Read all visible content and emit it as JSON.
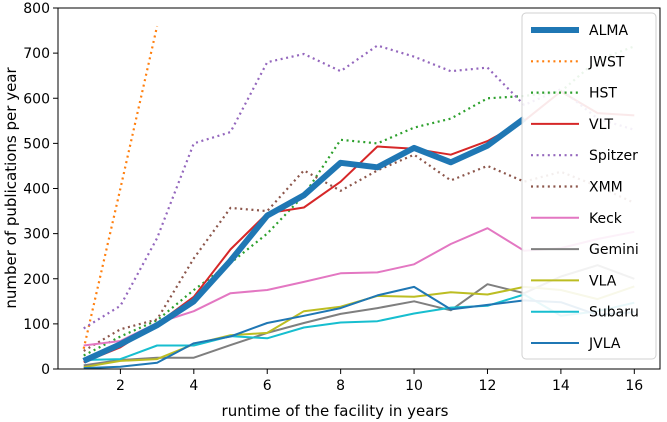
{
  "chart_data": {
    "type": "line",
    "title": "",
    "xlabel": "runtime of the facility in years",
    "ylabel": "number of publications per year",
    "xlim": [
      0.3,
      16.7
    ],
    "ylim": [
      0,
      800
    ],
    "xticks": [
      2,
      4,
      6,
      8,
      10,
      12,
      14,
      16
    ],
    "yticks": [
      0,
      100,
      200,
      300,
      400,
      500,
      600,
      700,
      800
    ],
    "grid": false,
    "legend_position": "right",
    "series": [
      {
        "name": "ALMA",
        "color": "#1f77b4",
        "dash": "solid",
        "width": "thick",
        "x": [
          1,
          2,
          3,
          4,
          5,
          6,
          7,
          8,
          9,
          10,
          11,
          12,
          13
        ],
        "y": [
          18,
          55,
          97,
          150,
          240,
          340,
          385,
          457,
          447,
          490,
          458,
          495,
          555
        ]
      },
      {
        "name": "JWST",
        "color": "#ff7f0e",
        "dash": "dotted",
        "width": "normal",
        "x": [
          1,
          2,
          3
        ],
        "y": [
          45,
          400,
          760
        ]
      },
      {
        "name": "HST",
        "color": "#2ca02c",
        "dash": "dotted",
        "width": "normal",
        "x": [
          1,
          2,
          3,
          4,
          5,
          6,
          7,
          8,
          9,
          10,
          11,
          12,
          13,
          14,
          15,
          16
        ],
        "y": [
          30,
          72,
          108,
          175,
          235,
          300,
          385,
          508,
          500,
          535,
          555,
          600,
          605,
          615,
          685,
          715
        ]
      },
      {
        "name": "VLT",
        "color": "#d62728",
        "dash": "solid",
        "width": "normal",
        "x": [
          1,
          2,
          3,
          4,
          5,
          6,
          7,
          8,
          9,
          10,
          11,
          12,
          13,
          14,
          15,
          16
        ],
        "y": [
          15,
          48,
          100,
          160,
          265,
          345,
          358,
          415,
          493,
          488,
          475,
          505,
          550,
          615,
          567,
          562
        ]
      },
      {
        "name": "Spitzer",
        "color": "#9467bd",
        "dash": "dotted",
        "width": "normal",
        "x": [
          1,
          2,
          3,
          4,
          5,
          6,
          7,
          8,
          9,
          10,
          11,
          12,
          13,
          14,
          15,
          16
        ],
        "y": [
          90,
          140,
          290,
          500,
          525,
          680,
          698,
          660,
          717,
          692,
          660,
          668,
          585,
          620,
          555,
          530
        ]
      },
      {
        "name": "XMM",
        "color": "#8c564b",
        "dash": "dotted",
        "width": "normal",
        "x": [
          1,
          2,
          3,
          4,
          5,
          6,
          7,
          8,
          9,
          10,
          11,
          12,
          13,
          14,
          15,
          16
        ],
        "y": [
          40,
          88,
          110,
          245,
          357,
          350,
          440,
          395,
          440,
          475,
          418,
          450,
          415,
          437,
          405,
          368
        ]
      },
      {
        "name": "Keck",
        "color": "#e377c2",
        "dash": "solid",
        "width": "normal",
        "x": [
          1,
          2,
          3,
          4,
          5,
          6,
          7,
          8,
          9,
          10,
          11,
          12,
          13,
          14,
          15,
          16
        ],
        "y": [
          52,
          62,
          102,
          128,
          168,
          175,
          193,
          212,
          214,
          232,
          277,
          312,
          262,
          268,
          288,
          304
        ]
      },
      {
        "name": "Gemini",
        "color": "#7f7f7f",
        "dash": "solid",
        "width": "normal",
        "x": [
          1,
          2,
          3,
          4,
          5,
          6,
          7,
          8,
          9,
          10,
          11,
          12,
          13,
          14,
          15,
          16
        ],
        "y": [
          8,
          20,
          25,
          25,
          53,
          80,
          102,
          122,
          135,
          150,
          130,
          188,
          168,
          205,
          230,
          200
        ]
      },
      {
        "name": "VLA",
        "color": "#bcbd22",
        "dash": "solid",
        "width": "normal",
        "x": [
          1,
          2,
          3,
          4,
          5,
          6,
          7,
          8,
          9,
          10,
          11,
          12,
          13,
          14,
          15,
          16
        ],
        "y": [
          4,
          18,
          22,
          55,
          75,
          80,
          128,
          138,
          162,
          160,
          170,
          165,
          182,
          175,
          155,
          183
        ]
      },
      {
        "name": "Subaru",
        "color": "#17becf",
        "dash": "solid",
        "width": "normal",
        "x": [
          1,
          2,
          3,
          4,
          5,
          6,
          7,
          8,
          9,
          10,
          11,
          12,
          13,
          14,
          15,
          16
        ],
        "y": [
          20,
          22,
          52,
          52,
          73,
          68,
          92,
          103,
          106,
          123,
          136,
          140,
          165,
          118,
          128,
          147
        ]
      },
      {
        "name": "JVLA",
        "color": "#1f77b4",
        "dash": "solid",
        "width": "normal",
        "x": [
          1,
          2,
          3,
          4,
          5,
          6,
          7,
          8,
          9,
          10,
          11,
          12,
          13,
          14,
          15,
          16
        ],
        "y": [
          2,
          5,
          14,
          57,
          72,
          102,
          118,
          135,
          163,
          182,
          132,
          142,
          152,
          148,
          120,
          126
        ]
      }
    ]
  }
}
